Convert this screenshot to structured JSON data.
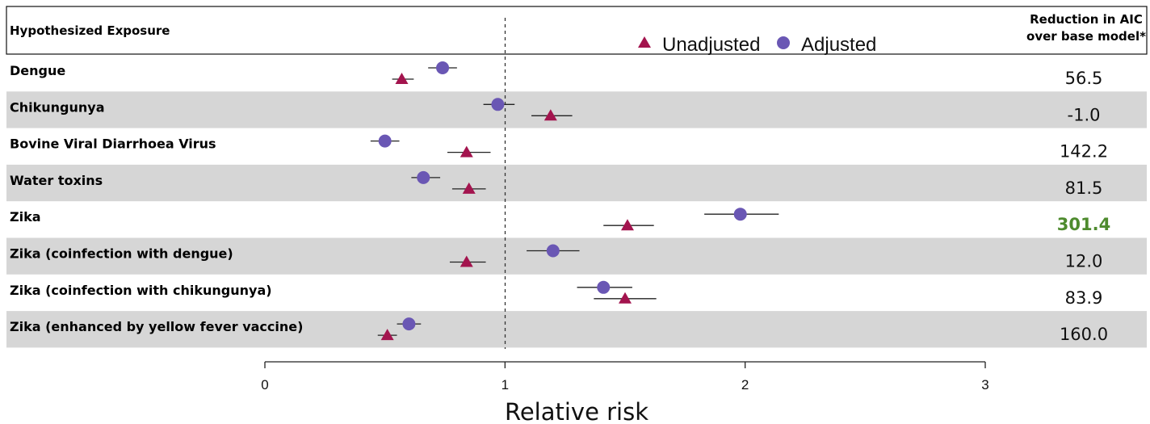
{
  "header": {
    "exposure_label": "Hypothesized Exposure",
    "aic_label_line1": "Reduction in AIC",
    "aic_label_line2": "over base model*"
  },
  "legend": {
    "unadjusted": "Unadjusted",
    "adjusted": "Adjusted"
  },
  "colors": {
    "unadjusted": "#a3144e",
    "adjusted": "#6a57b4",
    "shaded_row": "#d6d6d6",
    "highlight": "#4e8b2e"
  },
  "chart_data": {
    "type": "forest",
    "xlabel": "Relative risk",
    "xlim": [
      0,
      3
    ],
    "xticks": [
      0,
      1,
      2,
      3
    ],
    "reference_line": 1,
    "series": [
      {
        "name": "Unadjusted",
        "marker": "triangle"
      },
      {
        "name": "Adjusted",
        "marker": "circle"
      }
    ],
    "rows": [
      {
        "label": "Dengue",
        "aic": "56.5",
        "highlight": false,
        "adjusted": {
          "est": 0.74,
          "lo": 0.68,
          "hi": 0.8
        },
        "unadjusted": {
          "est": 0.57,
          "lo": 0.53,
          "hi": 0.62
        }
      },
      {
        "label": "Chikungunya",
        "aic": "-1.0",
        "highlight": false,
        "adjusted": {
          "est": 0.97,
          "lo": 0.91,
          "hi": 1.04
        },
        "unadjusted": {
          "est": 1.19,
          "lo": 1.11,
          "hi": 1.28
        }
      },
      {
        "label": "Bovine Viral Diarrhoea Virus",
        "aic": "142.2",
        "highlight": false,
        "adjusted": {
          "est": 0.5,
          "lo": 0.44,
          "hi": 0.56
        },
        "unadjusted": {
          "est": 0.84,
          "lo": 0.76,
          "hi": 0.94
        }
      },
      {
        "label": "Water toxins",
        "aic": "81.5",
        "highlight": false,
        "adjusted": {
          "est": 0.66,
          "lo": 0.61,
          "hi": 0.73
        },
        "unadjusted": {
          "est": 0.85,
          "lo": 0.78,
          "hi": 0.92
        }
      },
      {
        "label": "Zika",
        "aic": "301.4",
        "highlight": true,
        "adjusted": {
          "est": 1.98,
          "lo": 1.83,
          "hi": 2.14
        },
        "unadjusted": {
          "est": 1.51,
          "lo": 1.41,
          "hi": 1.62
        }
      },
      {
        "label": "Zika (coinfection with dengue)",
        "aic": "12.0",
        "highlight": false,
        "adjusted": {
          "est": 1.2,
          "lo": 1.09,
          "hi": 1.31
        },
        "unadjusted": {
          "est": 0.84,
          "lo": 0.77,
          "hi": 0.92
        }
      },
      {
        "label": "Zika (coinfection with chikungunya)",
        "aic": "83.9",
        "highlight": false,
        "adjusted": {
          "est": 1.41,
          "lo": 1.3,
          "hi": 1.53
        },
        "unadjusted": {
          "est": 1.5,
          "lo": 1.37,
          "hi": 1.63
        }
      },
      {
        "label": "Zika (enhanced by yellow fever vaccine)",
        "aic": "160.0",
        "highlight": false,
        "adjusted": {
          "est": 0.6,
          "lo": 0.55,
          "hi": 0.65
        },
        "unadjusted": {
          "est": 0.51,
          "lo": 0.47,
          "hi": 0.55
        }
      }
    ]
  }
}
